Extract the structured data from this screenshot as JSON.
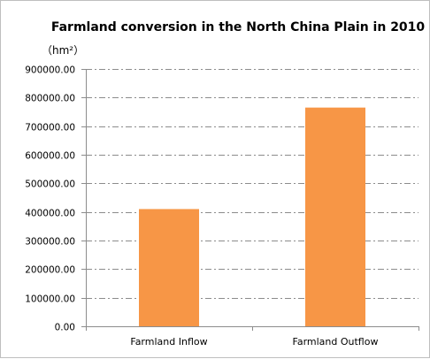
{
  "chart_data": {
    "type": "bar",
    "title": "Farmland conversion in the North China Plain in 2010",
    "unit_label": "（hm²）",
    "categories": [
      "Farmland Inflow",
      "Farmland Outflow"
    ],
    "values": [
      410000,
      765000
    ],
    "ylim": [
      0,
      900000
    ],
    "y_ticks": [
      0,
      100000,
      200000,
      300000,
      400000,
      500000,
      600000,
      700000,
      800000,
      900000
    ],
    "y_tick_labels": [
      "0.00",
      "100000.00",
      "200000.00",
      "300000.00",
      "400000.00",
      "500000.00",
      "600000.00",
      "700000.00",
      "800000.00",
      "900000.00"
    ],
    "grid": true,
    "legend": false,
    "bar_color": "#F79646"
  }
}
